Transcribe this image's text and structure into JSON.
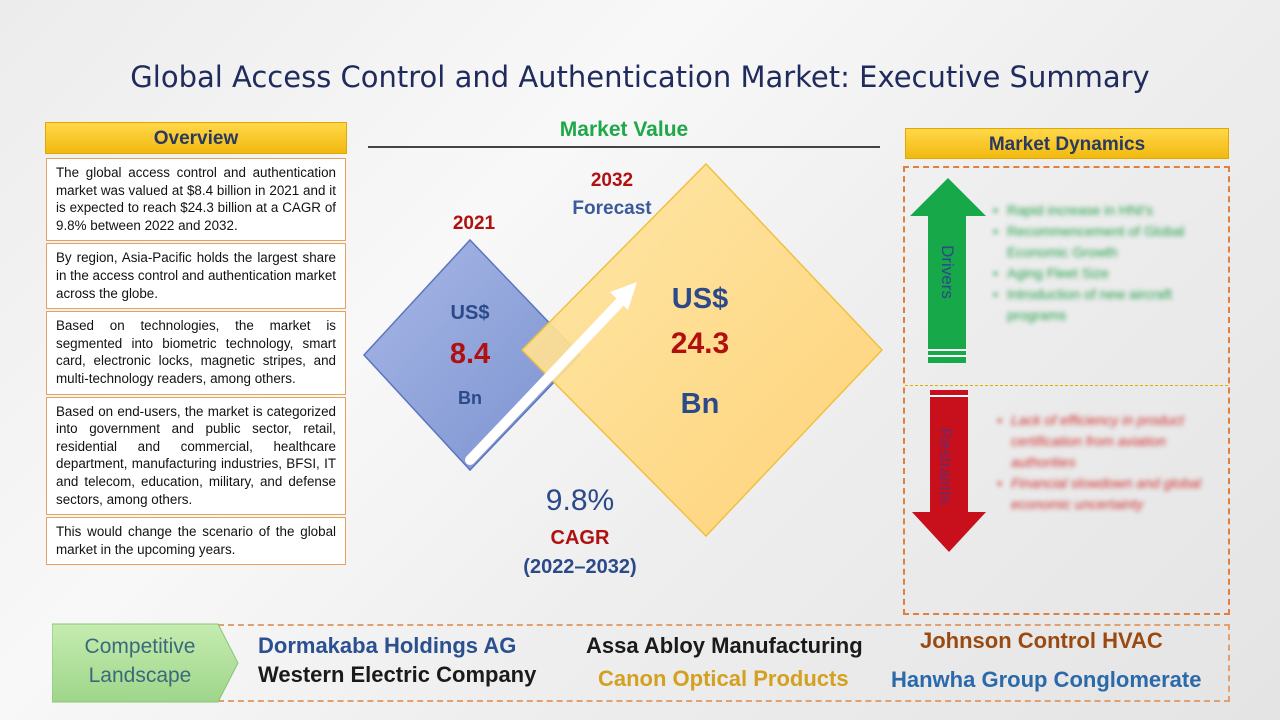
{
  "title": "Global Access Control and Authentication Market: Executive Summary",
  "overview": {
    "heading": "Overview",
    "items": [
      "The global access control and authentication market was valued at $8.4 billion in 2021 and it is expected to reach $24.3 billion at a CAGR of 9.8% between 2022 and 2032.",
      "By region, Asia-Pacific holds the largest share in the access control and authentication market across the globe.",
      "Based on technologies, the market is segmented into biometric technology, smart card, electronic locks, magnetic stripes, and multi-technology readers, among others.",
      "Based on end-users, the market is categorized into government and public sector, retail, residential and commercial, healthcare department, manufacturing industries, BFSI, IT and telecom, education, military, and defense sectors, among others.",
      "This would change the scenario of the global market in the upcoming years."
    ]
  },
  "market_value": {
    "heading": "Market Value",
    "year_2021": "2021",
    "value_2021_currency": "US$",
    "value_2021": "8.4",
    "value_2021_unit": "Bn",
    "year_2032": "2032",
    "forecast_label": "Forecast",
    "value_2032_currency": "US$",
    "value_2032": "24.3",
    "value_2032_unit": "Bn",
    "cagr_value": "9.8%",
    "cagr_label": "CAGR",
    "cagr_period": "(2022–2032)",
    "colors": {
      "diamond_2021": "#8ea3d8",
      "diamond_2032": "#ffd680",
      "accent_red": "#b01010"
    }
  },
  "market_dynamics": {
    "heading": "Market Dynamics",
    "drivers_label": "Drivers",
    "drivers": [
      "Rapid increase in HNI's",
      "Recommencement of Global Economic Growth",
      "Aging Fleet Size",
      "Introduction of new aircraft programs"
    ],
    "restraints_label": "Restraints",
    "restraints": [
      "Lack of efficiency in product certification from aviation authorities",
      "Financial slowdown and global economic uncertainty"
    ]
  },
  "competitive_landscape": {
    "label_line1": "Competitive",
    "label_line2": "Landscape",
    "companies": [
      "Dormakaba Holdings AG",
      "Western Electric Company",
      "Assa Abloy Manufacturing",
      "Canon Optical Products",
      "Johnson Control HVAC",
      "Hanwha Group Conglomerate"
    ]
  }
}
